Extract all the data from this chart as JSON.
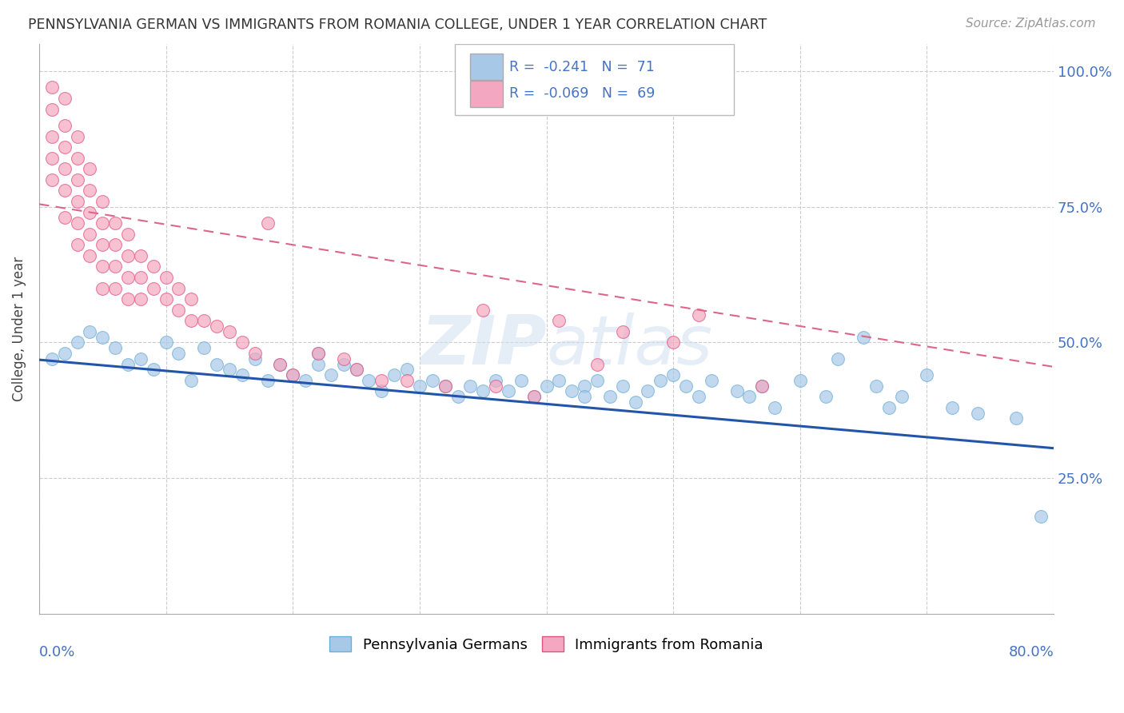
{
  "title": "PENNSYLVANIA GERMAN VS IMMIGRANTS FROM ROMANIA COLLEGE, UNDER 1 YEAR CORRELATION CHART",
  "source": "Source: ZipAtlas.com",
  "ylabel": "College, Under 1 year",
  "ytick_values": [
    0.25,
    0.5,
    0.75,
    1.0
  ],
  "xlim": [
    0.0,
    0.8
  ],
  "ylim": [
    0.0,
    1.05
  ],
  "series_blue": {
    "name": "Pennsylvania Germans",
    "color": "#a8c8e8",
    "border_color": "#6baed6",
    "x": [
      0.01,
      0.02,
      0.03,
      0.04,
      0.05,
      0.06,
      0.07,
      0.08,
      0.09,
      0.1,
      0.11,
      0.12,
      0.13,
      0.14,
      0.15,
      0.16,
      0.17,
      0.18,
      0.19,
      0.2,
      0.21,
      0.22,
      0.22,
      0.23,
      0.24,
      0.25,
      0.26,
      0.27,
      0.28,
      0.29,
      0.3,
      0.31,
      0.32,
      0.33,
      0.34,
      0.35,
      0.36,
      0.37,
      0.38,
      0.39,
      0.4,
      0.41,
      0.42,
      0.43,
      0.43,
      0.44,
      0.45,
      0.46,
      0.47,
      0.48,
      0.49,
      0.5,
      0.51,
      0.52,
      0.53,
      0.55,
      0.56,
      0.57,
      0.58,
      0.6,
      0.62,
      0.63,
      0.65,
      0.66,
      0.67,
      0.68,
      0.7,
      0.72,
      0.74,
      0.77,
      0.79
    ],
    "y": [
      0.47,
      0.48,
      0.5,
      0.52,
      0.51,
      0.49,
      0.46,
      0.47,
      0.45,
      0.5,
      0.48,
      0.43,
      0.49,
      0.46,
      0.45,
      0.44,
      0.47,
      0.43,
      0.46,
      0.44,
      0.43,
      0.48,
      0.46,
      0.44,
      0.46,
      0.45,
      0.43,
      0.41,
      0.44,
      0.45,
      0.42,
      0.43,
      0.42,
      0.4,
      0.42,
      0.41,
      0.43,
      0.41,
      0.43,
      0.4,
      0.42,
      0.43,
      0.41,
      0.42,
      0.4,
      0.43,
      0.4,
      0.42,
      0.39,
      0.41,
      0.43,
      0.44,
      0.42,
      0.4,
      0.43,
      0.41,
      0.4,
      0.42,
      0.38,
      0.43,
      0.4,
      0.47,
      0.51,
      0.42,
      0.38,
      0.4,
      0.44,
      0.38,
      0.37,
      0.36,
      0.18
    ]
  },
  "series_pink": {
    "name": "Immigrants from Romania",
    "color": "#f4a7c0",
    "border_color": "#e05080",
    "x": [
      0.01,
      0.01,
      0.01,
      0.01,
      0.01,
      0.02,
      0.02,
      0.02,
      0.02,
      0.02,
      0.02,
      0.03,
      0.03,
      0.03,
      0.03,
      0.03,
      0.03,
      0.04,
      0.04,
      0.04,
      0.04,
      0.04,
      0.05,
      0.05,
      0.05,
      0.05,
      0.05,
      0.06,
      0.06,
      0.06,
      0.06,
      0.07,
      0.07,
      0.07,
      0.07,
      0.08,
      0.08,
      0.08,
      0.09,
      0.09,
      0.1,
      0.1,
      0.11,
      0.11,
      0.12,
      0.12,
      0.13,
      0.14,
      0.15,
      0.16,
      0.17,
      0.18,
      0.19,
      0.2,
      0.22,
      0.24,
      0.25,
      0.27,
      0.29,
      0.32,
      0.35,
      0.36,
      0.39,
      0.41,
      0.44,
      0.46,
      0.5,
      0.52,
      0.57
    ],
    "y": [
      0.97,
      0.93,
      0.88,
      0.84,
      0.8,
      0.95,
      0.9,
      0.86,
      0.82,
      0.78,
      0.73,
      0.88,
      0.84,
      0.8,
      0.76,
      0.72,
      0.68,
      0.82,
      0.78,
      0.74,
      0.7,
      0.66,
      0.76,
      0.72,
      0.68,
      0.64,
      0.6,
      0.72,
      0.68,
      0.64,
      0.6,
      0.7,
      0.66,
      0.62,
      0.58,
      0.66,
      0.62,
      0.58,
      0.64,
      0.6,
      0.62,
      0.58,
      0.6,
      0.56,
      0.58,
      0.54,
      0.54,
      0.53,
      0.52,
      0.5,
      0.48,
      0.72,
      0.46,
      0.44,
      0.48,
      0.47,
      0.45,
      0.43,
      0.43,
      0.42,
      0.56,
      0.42,
      0.4,
      0.54,
      0.46,
      0.52,
      0.5,
      0.55,
      0.42
    ]
  },
  "blue_trend": {
    "x_start": 0.0,
    "y_start": 0.468,
    "x_end": 0.8,
    "y_end": 0.305
  },
  "pink_trend": {
    "x_start": 0.0,
    "y_start": 0.755,
    "x_end": 0.8,
    "y_end": 0.455
  },
  "watermark": "ZIPatlas",
  "background_color": "#ffffff"
}
